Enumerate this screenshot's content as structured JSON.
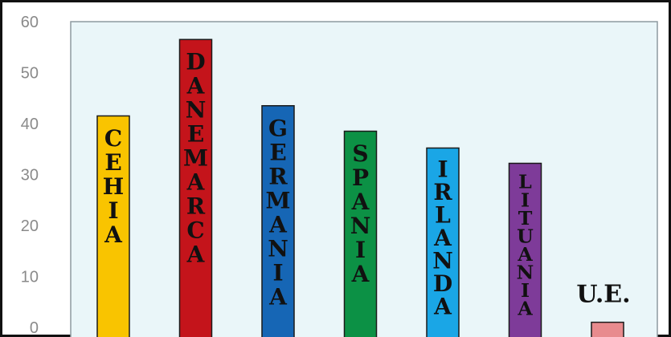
{
  "chart_data": {
    "type": "bar",
    "title": "",
    "xlabel": "",
    "ylabel": "",
    "ylim": [
      0,
      60
    ],
    "yticks": [
      0,
      10,
      20,
      30,
      40,
      50,
      60
    ],
    "grid": false,
    "categories": [
      "CEHIA",
      "DANEMARCA",
      "GERMANIA",
      "SPANIA",
      "IRLANDA",
      "LITUANIA",
      "U.E."
    ],
    "values": [
      41.5,
      56.5,
      43.5,
      38.5,
      35.2,
      32.2,
      1.0
    ],
    "colors": [
      "#f9c400",
      "#c4141b",
      "#1666b5",
      "#0c9145",
      "#1aa6e6",
      "#7e3b99",
      "#e88b8e"
    ],
    "plot_background": "#eaf6f9",
    "plot_border": "#8e9aa0"
  }
}
